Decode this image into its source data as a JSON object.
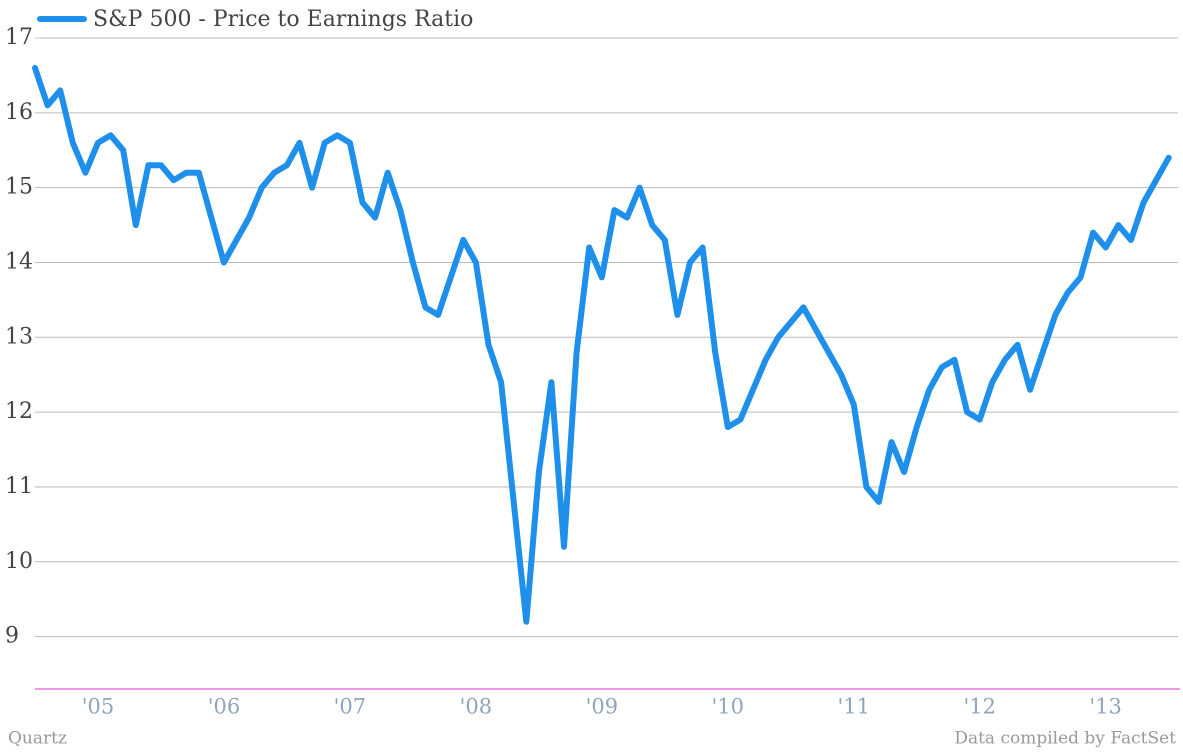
{
  "chart_data": {
    "type": "line",
    "series": [
      {
        "name": "S&P 500 - Price to Earnings Ratio",
        "color": "#1e90ec",
        "x": [
          2004.5,
          2004.6,
          2004.7,
          2004.8,
          2004.9,
          2005.0,
          2005.1,
          2005.2,
          2005.3,
          2005.4,
          2005.5,
          2005.6,
          2005.7,
          2005.8,
          2005.9,
          2006.0,
          2006.1,
          2006.2,
          2006.3,
          2006.4,
          2006.5,
          2006.6,
          2006.7,
          2006.8,
          2006.9,
          2007.0,
          2007.1,
          2007.2,
          2007.3,
          2007.4,
          2007.5,
          2007.6,
          2007.7,
          2007.8,
          2007.9,
          2008.0,
          2008.1,
          2008.2,
          2008.3,
          2008.4,
          2008.5,
          2008.6,
          2008.7,
          2008.8,
          2008.9,
          2009.0,
          2009.1,
          2009.2,
          2009.3,
          2009.4,
          2009.5,
          2009.6,
          2009.7,
          2009.8,
          2009.9,
          2010.0,
          2010.1,
          2010.2,
          2010.3,
          2010.4,
          2010.5,
          2010.6,
          2010.7,
          2010.8,
          2010.9,
          2011.0,
          2011.1,
          2011.2,
          2011.3,
          2011.4,
          2011.5,
          2011.6,
          2011.7,
          2011.8,
          2011.9,
          2012.0,
          2012.1,
          2012.2,
          2012.3,
          2012.4,
          2012.5,
          2012.6,
          2012.7,
          2012.8,
          2012.9,
          2013.0,
          2013.1,
          2013.2,
          2013.3,
          2013.4,
          2013.5
        ],
        "values": [
          16.6,
          16.1,
          16.3,
          15.6,
          15.2,
          15.6,
          15.7,
          15.5,
          14.5,
          15.3,
          15.3,
          15.1,
          15.2,
          15.2,
          14.6,
          14.0,
          14.3,
          14.6,
          15.0,
          15.2,
          15.3,
          15.6,
          15.0,
          15.6,
          15.7,
          15.6,
          14.8,
          14.6,
          15.2,
          14.7,
          14.0,
          13.4,
          13.3,
          13.8,
          14.3,
          14.0,
          12.9,
          12.4,
          10.8,
          9.2,
          11.2,
          12.4,
          10.2,
          12.8,
          14.2,
          13.8,
          14.7,
          14.6,
          15.0,
          14.5,
          14.3,
          13.3,
          14.0,
          14.2,
          12.8,
          11.8,
          11.9,
          12.3,
          12.7,
          13.0,
          13.2,
          13.4,
          13.1,
          12.8,
          12.5,
          12.1,
          11.0,
          10.8,
          11.6,
          11.2,
          11.8,
          12.3,
          12.6,
          12.7,
          12.0,
          11.9,
          12.4,
          12.7,
          12.9,
          12.3,
          12.8,
          13.3,
          13.6,
          13.8,
          14.4,
          14.2,
          14.5,
          14.3,
          14.8,
          15.1,
          15.4
        ]
      }
    ],
    "xlim": [
      2004.5,
      2013.59
    ],
    "xticks": [
      {
        "value": 2005,
        "label": "'05"
      },
      {
        "value": 2006,
        "label": "'06"
      },
      {
        "value": 2007,
        "label": "'07"
      },
      {
        "value": 2008,
        "label": "'08"
      },
      {
        "value": 2009,
        "label": "'09"
      },
      {
        "value": 2010,
        "label": "'10"
      },
      {
        "value": 2011,
        "label": "'11"
      },
      {
        "value": 2012,
        "label": "'12"
      },
      {
        "value": 2013,
        "label": "'13"
      }
    ],
    "ylim": [
      8.3,
      17
    ],
    "yticks": [
      9,
      10,
      11,
      12,
      13,
      14,
      15,
      16,
      17
    ],
    "grid": true,
    "legend": "top-left",
    "source": "Quartz",
    "note": "Data compiled by FactSet"
  }
}
